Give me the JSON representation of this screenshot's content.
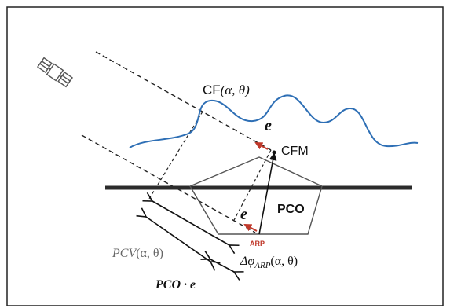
{
  "labels": {
    "cf": "CF",
    "cf_args": "(α, θ)",
    "e_upper": "e",
    "cfm": "CFM",
    "e_lower": "e",
    "pco": "PCO",
    "arp": "ARP",
    "pcv": "PCV",
    "pcv_args": "(α, θ)",
    "delta_phi": "Δφ",
    "delta_phi_sub": "ARP",
    "delta_phi_args": "(α, θ)",
    "pco_e": "PCO · e"
  },
  "colors": {
    "wave": "#2e6fb5",
    "arrow_red": "#c0392b",
    "ground": "#2b2b2b",
    "pcv_label": "#666666"
  },
  "icons": {
    "satellite": "satellite-icon"
  }
}
